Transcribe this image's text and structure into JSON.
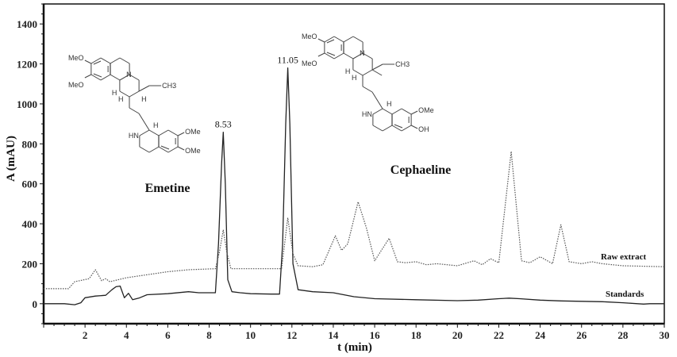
{
  "chart_data": {
    "type": "line",
    "title": "",
    "xlabel": "t (min)",
    "ylabel": "A (mAU)",
    "xlim": [
      0,
      30
    ],
    "ylim": [
      -100,
      1500
    ],
    "xticks": [
      "2",
      "4",
      "6",
      "8",
      "10",
      "12",
      "14",
      "16",
      "18",
      "20",
      "22",
      "24",
      "26",
      "28",
      "30"
    ],
    "yticks": [
      "0",
      "200",
      "400",
      "600",
      "800",
      "1000",
      "1200",
      "1400"
    ],
    "grid": false,
    "series": [
      {
        "name": "Standards",
        "style": "solid",
        "color": "#222222",
        "x": [
          0,
          1,
          1.5,
          1.8,
          2,
          2.5,
          3,
          3.3,
          3.5,
          3.7,
          3.9,
          4.1,
          4.3,
          4.6,
          5,
          6,
          7,
          7.5,
          8.3,
          8.45,
          8.6,
          8.68,
          8.78,
          8.9,
          9.1,
          9.5,
          10,
          11,
          11.4,
          11.55,
          11.7,
          11.8,
          11.9,
          12.05,
          12.3,
          13,
          14,
          15,
          16,
          18,
          20,
          21,
          22,
          22.5,
          23,
          24,
          25,
          26,
          27,
          28,
          29,
          29.3,
          30
        ],
        "y": [
          0,
          0,
          -5,
          5,
          30,
          38,
          42,
          70,
          85,
          88,
          30,
          52,
          20,
          28,
          45,
          50,
          60,
          55,
          55,
          300,
          700,
          858,
          600,
          120,
          60,
          55,
          50,
          48,
          48,
          300,
          900,
          1180,
          900,
          200,
          70,
          60,
          55,
          35,
          25,
          20,
          15,
          18,
          25,
          28,
          25,
          18,
          14,
          12,
          10,
          5,
          -2,
          0,
          0
        ]
      },
      {
        "name": "Raw extract",
        "style": "dotted",
        "color": "#555555",
        "x": [
          0,
          1.2,
          1.5,
          2.2,
          2.5,
          2.8,
          3,
          3.2,
          4,
          5,
          6,
          7,
          8.3,
          8.5,
          8.68,
          8.85,
          9.05,
          10,
          11,
          11.5,
          11.8,
          12.05,
          12.3,
          13,
          13.5,
          14.1,
          14.4,
          14.7,
          15.2,
          15.6,
          16,
          16.7,
          17.1,
          17.5,
          18,
          18.5,
          19,
          20,
          20.8,
          21.2,
          21.6,
          22,
          22.6,
          23.1,
          23.5,
          24,
          24.6,
          25.0,
          25.4,
          26,
          26.5,
          27,
          28,
          30
        ],
        "y": [
          75,
          75,
          110,
          125,
          170,
          115,
          125,
          110,
          130,
          145,
          160,
          170,
          175,
          260,
          370,
          260,
          175,
          175,
          175,
          175,
          430,
          250,
          190,
          185,
          195,
          340,
          267,
          300,
          510,
          380,
          215,
          327,
          210,
          205,
          210,
          195,
          200,
          190,
          215,
          195,
          225,
          205,
          762,
          215,
          205,
          235,
          200,
          395,
          210,
          200,
          210,
          200,
          190,
          185
        ]
      }
    ],
    "peak_labels": [
      {
        "x": 8.53,
        "text": "8.53"
      },
      {
        "x": 11.05,
        "text": "11.05"
      }
    ]
  },
  "structures": {
    "emetine": {
      "name": "Emetine",
      "labels": [
        "MeO",
        "MeO",
        "N",
        "H",
        "CH3",
        "H",
        "H",
        "H",
        "HN",
        "OMe",
        "OMe"
      ]
    },
    "cephaeline": {
      "name": "Cephaeline",
      "labels": [
        "MeO",
        "MeO",
        "N",
        "H",
        "CH3",
        "H",
        "H",
        "H",
        "HN",
        "OMe",
        "OH"
      ]
    }
  }
}
